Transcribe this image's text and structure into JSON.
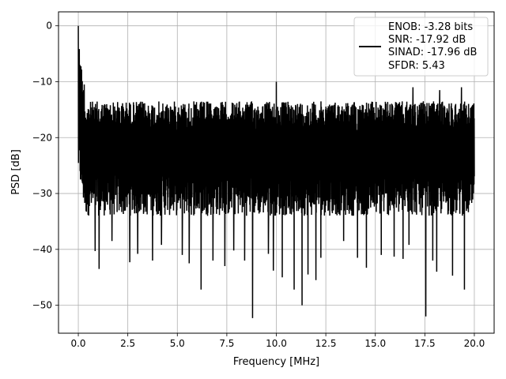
{
  "chart_data": {
    "type": "line",
    "title": "",
    "xlabel": "Frequency [MHz]",
    "ylabel": "PSD [dB]",
    "xlim": [
      -1.0,
      21.0
    ],
    "ylim": [
      -55.0,
      2.5
    ],
    "x_ticks": [
      0.0,
      2.5,
      5.0,
      7.5,
      10.0,
      12.5,
      15.0,
      17.5,
      20.0
    ],
    "x_tick_labels": [
      "0.0",
      "2.5",
      "5.0",
      "7.5",
      "10.0",
      "12.5",
      "15.0",
      "17.5",
      "20.0"
    ],
    "y_ticks": [
      0,
      -10,
      -20,
      -30,
      -40,
      -50
    ],
    "y_tick_labels": [
      "0",
      "−10",
      "−20",
      "−30",
      "−40",
      "−50"
    ],
    "grid": true,
    "legend_position": "top-right",
    "series": [
      {
        "name": "",
        "color": "#000000",
        "legend_lines": [
          "ENOB: -3.28 bits",
          "SNR: -17.92 dB",
          "SINAD: -17.96 dB",
          "SFDR: 5.43"
        ],
        "x_range": [
          0.0,
          20.0
        ],
        "sample_count": 2400,
        "peak": {
          "x": 0.0,
          "y": 0.0
        },
        "upper_envelope_db": -13.5,
        "median_db": -22.5,
        "typical_lower_db": -32.0,
        "low_points": [
          {
            "x": 0.3,
            "y": -35.0
          },
          {
            "x": 0.85,
            "y": -40.3
          },
          {
            "x": 1.05,
            "y": -43.5
          },
          {
            "x": 1.7,
            "y": -38.5
          },
          {
            "x": 2.6,
            "y": -37.8
          },
          {
            "x": 2.6,
            "y": -42.3
          },
          {
            "x": 3.0,
            "y": -40.8
          },
          {
            "x": 3.75,
            "y": -42.0
          },
          {
            "x": 4.2,
            "y": -39.2
          },
          {
            "x": 5.25,
            "y": -41.0
          },
          {
            "x": 5.6,
            "y": -42.5
          },
          {
            "x": 6.2,
            "y": -47.2
          },
          {
            "x": 6.8,
            "y": -42.0
          },
          {
            "x": 7.4,
            "y": -43.0
          },
          {
            "x": 7.85,
            "y": -40.2
          },
          {
            "x": 8.4,
            "y": -42.0
          },
          {
            "x": 8.8,
            "y": -52.3
          },
          {
            "x": 9.6,
            "y": -40.8
          },
          {
            "x": 9.85,
            "y": -43.8
          },
          {
            "x": 10.3,
            "y": -45.0
          },
          {
            "x": 10.9,
            "y": -47.2
          },
          {
            "x": 11.3,
            "y": -50.0
          },
          {
            "x": 11.6,
            "y": -44.5
          },
          {
            "x": 12.0,
            "y": -45.5
          },
          {
            "x": 12.25,
            "y": -41.5
          },
          {
            "x": 13.4,
            "y": -38.5
          },
          {
            "x": 14.1,
            "y": -41.5
          },
          {
            "x": 14.55,
            "y": -43.3
          },
          {
            "x": 15.3,
            "y": -41.0
          },
          {
            "x": 15.95,
            "y": -41.3
          },
          {
            "x": 16.4,
            "y": -41.7
          },
          {
            "x": 16.7,
            "y": -39.2
          },
          {
            "x": 17.55,
            "y": -52.0
          },
          {
            "x": 17.9,
            "y": -42.0
          },
          {
            "x": 18.1,
            "y": -44.0
          },
          {
            "x": 18.9,
            "y": -44.7
          },
          {
            "x": 19.5,
            "y": -47.2
          }
        ],
        "high_points": [
          {
            "x": 0.02,
            "y": -4.8
          },
          {
            "x": 0.08,
            "y": -7.0
          },
          {
            "x": 0.15,
            "y": -9.0
          },
          {
            "x": 0.3,
            "y": -10.5
          },
          {
            "x": 10.0,
            "y": -10.0
          },
          {
            "x": 16.9,
            "y": -11.0
          },
          {
            "x": 18.25,
            "y": -11.5
          },
          {
            "x": 19.35,
            "y": -11.0
          }
        ]
      }
    ]
  }
}
